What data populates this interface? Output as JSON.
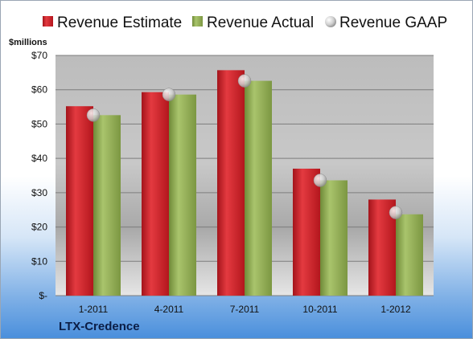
{
  "chart_data": {
    "type": "bar",
    "title": "",
    "ylabel": "$millions",
    "xlabel": "",
    "categories": [
      "1-2011",
      "4-2011",
      "7-2011",
      "10-2011",
      "1-2012"
    ],
    "series": [
      {
        "name": "Revenue Estimate",
        "kind": "bar",
        "color": "#d01f27",
        "values": [
          55.2,
          59.3,
          65.7,
          37.0,
          28.0
        ]
      },
      {
        "name": "Revenue Actual",
        "kind": "bar",
        "color": "#8faa54",
        "values": [
          52.6,
          58.6,
          62.6,
          33.6,
          23.7
        ]
      },
      {
        "name": "Revenue GAAP",
        "kind": "marker",
        "color": "#c0c0c0",
        "values": [
          52.6,
          58.6,
          62.6,
          33.6,
          24.2
        ]
      }
    ],
    "ylim": [
      0,
      70
    ],
    "yticks": [
      0,
      10,
      20,
      30,
      40,
      50,
      60,
      70
    ],
    "ytick_labels": [
      "$-",
      "$10",
      "$20",
      "$30",
      "$40",
      "$50",
      "$60",
      "$70"
    ],
    "grid": true,
    "legend_position": "top",
    "company": "LTX-Credence"
  }
}
